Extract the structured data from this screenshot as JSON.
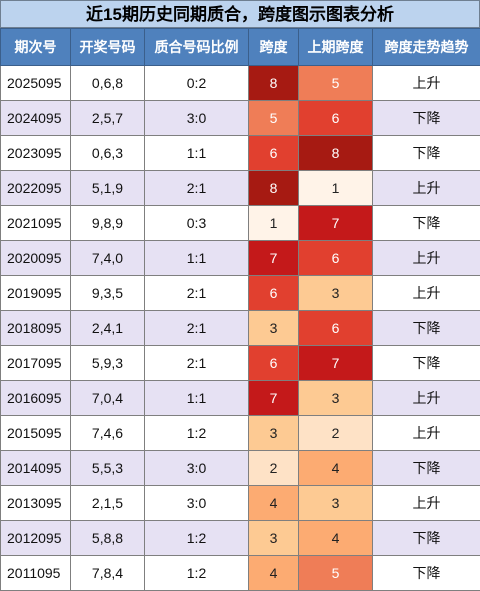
{
  "title": "近15期历史同期质合，跨度图示图表分析",
  "columns": [
    "期次号",
    "开奖号码",
    "质合号码比例",
    "跨度",
    "上期跨度",
    "跨度走势趋势"
  ],
  "rows": [
    {
      "period": "2025095",
      "numbers": "0,6,8",
      "ratio": "0:2",
      "span": "8",
      "span_color": "#a61a12",
      "prev_span": "5",
      "prev_color": "#ef7d57",
      "trend": "上升"
    },
    {
      "period": "2024095",
      "numbers": "2,5,7",
      "ratio": "3:0",
      "span": "5",
      "span_color": "#ef7d57",
      "prev_span": "6",
      "prev_color": "#e1402f",
      "trend": "下降"
    },
    {
      "period": "2023095",
      "numbers": "0,6,3",
      "ratio": "1:1",
      "span": "6",
      "span_color": "#e1402f",
      "prev_span": "8",
      "prev_color": "#a61a12",
      "trend": "下降"
    },
    {
      "period": "2022095",
      "numbers": "5,1,9",
      "ratio": "2:1",
      "span": "8",
      "span_color": "#a61a12",
      "prev_span": "1",
      "prev_color": "#fff3e8",
      "trend": "上升"
    },
    {
      "period": "2021095",
      "numbers": "9,8,9",
      "ratio": "0:3",
      "span": "1",
      "span_color": "#fff3e8",
      "prev_span": "7",
      "prev_color": "#c4191a",
      "trend": "下降"
    },
    {
      "period": "2020095",
      "numbers": "7,4,0",
      "ratio": "1:1",
      "span": "7",
      "span_color": "#c4191a",
      "prev_span": "6",
      "prev_color": "#e1402f",
      "trend": "上升"
    },
    {
      "period": "2019095",
      "numbers": "9,3,5",
      "ratio": "2:1",
      "span": "6",
      "span_color": "#e1402f",
      "prev_span": "3",
      "prev_color": "#fdca93",
      "trend": "上升"
    },
    {
      "period": "2018095",
      "numbers": "2,4,1",
      "ratio": "2:1",
      "span": "3",
      "span_color": "#fdca93",
      "prev_span": "6",
      "prev_color": "#e1402f",
      "trend": "下降"
    },
    {
      "period": "2017095",
      "numbers": "5,9,3",
      "ratio": "2:1",
      "span": "6",
      "span_color": "#e1402f",
      "prev_span": "7",
      "prev_color": "#c4191a",
      "trend": "下降"
    },
    {
      "period": "2016095",
      "numbers": "7,0,4",
      "ratio": "1:1",
      "span": "7",
      "span_color": "#c4191a",
      "prev_span": "3",
      "prev_color": "#fdca93",
      "trend": "上升"
    },
    {
      "period": "2015095",
      "numbers": "7,4,6",
      "ratio": "1:2",
      "span": "3",
      "span_color": "#fdca93",
      "prev_span": "2",
      "prev_color": "#fee2c6",
      "trend": "上升"
    },
    {
      "period": "2014095",
      "numbers": "5,5,3",
      "ratio": "3:0",
      "span": "2",
      "span_color": "#fee2c6",
      "prev_span": "4",
      "prev_color": "#fcab72",
      "trend": "下降"
    },
    {
      "period": "2013095",
      "numbers": "2,1,5",
      "ratio": "3:0",
      "span": "4",
      "span_color": "#fcab72",
      "prev_span": "3",
      "prev_color": "#fdca93",
      "trend": "上升"
    },
    {
      "period": "2012095",
      "numbers": "5,8,8",
      "ratio": "1:2",
      "span": "3",
      "span_color": "#fdca93",
      "prev_span": "4",
      "prev_color": "#fcab72",
      "trend": "下降"
    },
    {
      "period": "2011095",
      "numbers": "7,8,4",
      "ratio": "1:2",
      "span": "4",
      "span_color": "#fcab72",
      "prev_span": "5",
      "prev_color": "#ef7d57",
      "trend": "下降"
    }
  ]
}
